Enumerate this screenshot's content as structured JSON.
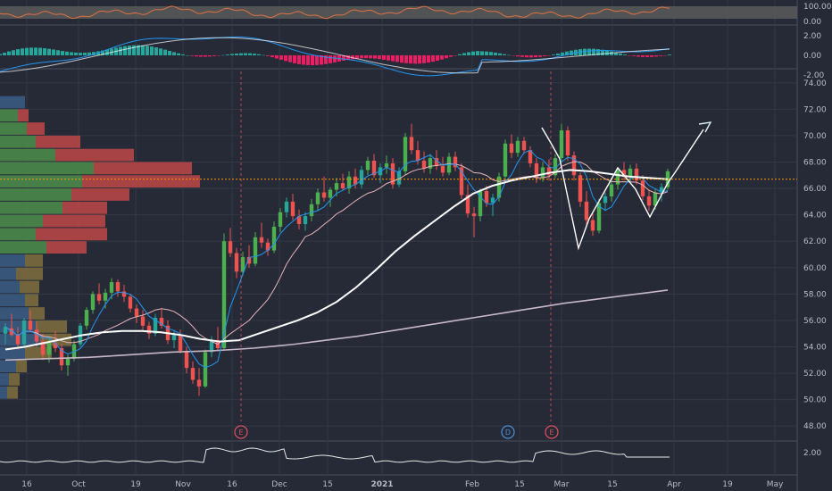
{
  "chart_data": {
    "type": "candlestick",
    "colors": {
      "background": "#262a36",
      "grid": "#333846",
      "up": "#26a69a",
      "up_alt": "#4caf50",
      "down": "#ef5350",
      "ma_white": "#ffffff",
      "ma_pink": "#e8b4b8",
      "ma_blue": "#2196f3",
      "ma_200": "#c7b8c8",
      "current_line": "#ff9800",
      "earnings": "#e05060",
      "dividend": "#4a90d9",
      "vp_up": "#4a8a4a",
      "vp_down": "#c04848",
      "vp_up_old": "#3a5a80",
      "vp_down_old": "#807040",
      "rsi_bg": "#5a5a5a",
      "rsi_line": "#e07040"
    },
    "price_axis": {
      "ticks": [
        "74.00",
        "72.00",
        "70.00",
        "68.00",
        "66.00",
        "64.00",
        "62.00",
        "60.00",
        "58.00",
        "56.00",
        "54.00",
        "52.00",
        "50.00",
        "48.00"
      ],
      "ylim": [
        47,
        75
      ]
    },
    "rsi_axis": {
      "ticks": [
        "100.00",
        "0.00"
      ]
    },
    "macd_axis": {
      "ticks": [
        "2.00",
        "0.00",
        "-2.00"
      ]
    },
    "lower_axis": {
      "ticks": [
        "2.00"
      ]
    },
    "x_axis": {
      "labels": [
        "16",
        "Oct",
        "19",
        "Nov",
        "16",
        "Dec",
        "15",
        "2021",
        "Feb",
        "15",
        "Mar",
        "15",
        "Apr",
        "19",
        "May"
      ]
    },
    "markers": [
      {
        "label": "E",
        "kind": "earnings"
      },
      {
        "label": "D",
        "kind": "dividend"
      },
      {
        "label": "E",
        "kind": "earnings"
      }
    ],
    "current_price": 66.7,
    "candles": [
      [
        55.0,
        55.8,
        54.2,
        55.5
      ],
      [
        55.4,
        56.5,
        54.8,
        54.9
      ],
      [
        54.9,
        55.5,
        53.8,
        54.2
      ],
      [
        54.2,
        56.2,
        53.9,
        56.0
      ],
      [
        56.0,
        56.8,
        55.1,
        55.3
      ],
      [
        55.3,
        55.9,
        54.0,
        54.4
      ],
      [
        54.4,
        55.0,
        53.0,
        53.4
      ],
      [
        53.4,
        54.6,
        52.8,
        54.3
      ],
      [
        54.3,
        55.2,
        53.6,
        53.9
      ],
      [
        53.9,
        54.2,
        52.2,
        52.6
      ],
      [
        52.6,
        53.4,
        51.8,
        53.1
      ],
      [
        53.1,
        54.5,
        52.9,
        54.2
      ],
      [
        54.2,
        55.8,
        54.0,
        55.6
      ],
      [
        55.6,
        57.0,
        55.3,
        56.8
      ],
      [
        56.8,
        58.2,
        56.5,
        58.0
      ],
      [
        58.0,
        58.8,
        57.2,
        57.5
      ],
      [
        57.5,
        58.4,
        56.9,
        58.1
      ],
      [
        58.1,
        59.2,
        57.6,
        58.9
      ],
      [
        58.9,
        59.1,
        57.8,
        58.2
      ],
      [
        58.2,
        58.7,
        57.4,
        57.8
      ],
      [
        57.8,
        58.0,
        56.6,
        56.9
      ],
      [
        56.9,
        57.2,
        55.8,
        56.3
      ],
      [
        56.3,
        56.8,
        55.2,
        55.6
      ],
      [
        55.6,
        55.9,
        54.6,
        55.0
      ],
      [
        55.0,
        56.5,
        54.8,
        56.2
      ],
      [
        56.2,
        56.9,
        55.4,
        55.6
      ],
      [
        55.6,
        56.0,
        54.2,
        54.5
      ],
      [
        54.5,
        55.2,
        53.9,
        54.9
      ],
      [
        54.9,
        55.3,
        53.5,
        53.7
      ],
      [
        53.7,
        54.0,
        52.0,
        52.4
      ],
      [
        52.4,
        52.9,
        51.2,
        51.5
      ],
      [
        51.5,
        52.4,
        50.3,
        51.0
      ],
      [
        51.0,
        53.8,
        50.9,
        53.6
      ],
      [
        53.6,
        54.8,
        53.2,
        54.5
      ],
      [
        54.5,
        55.5,
        53.7,
        53.9
      ],
      [
        53.9,
        62.6,
        53.8,
        62.0
      ],
      [
        62.0,
        63.0,
        60.8,
        61.1
      ],
      [
        61.1,
        61.5,
        59.2,
        59.7
      ],
      [
        59.7,
        61.2,
        59.4,
        60.8
      ],
      [
        60.8,
        61.7,
        60.0,
        60.3
      ],
      [
        60.3,
        62.7,
        60.1,
        62.3
      ],
      [
        62.3,
        63.4,
        61.5,
        61.9
      ],
      [
        61.9,
        62.2,
        60.9,
        61.3
      ],
      [
        61.3,
        63.5,
        61.1,
        63.1
      ],
      [
        63.1,
        64.5,
        62.7,
        64.2
      ],
      [
        64.2,
        65.3,
        63.8,
        65.0
      ],
      [
        65.0,
        65.6,
        63.6,
        63.9
      ],
      [
        63.9,
        64.4,
        62.9,
        63.3
      ],
      [
        63.3,
        64.2,
        62.8,
        63.9
      ],
      [
        63.9,
        65.2,
        63.5,
        64.8
      ],
      [
        64.8,
        66.0,
        64.3,
        65.7
      ],
      [
        65.7,
        66.9,
        65.0,
        65.3
      ],
      [
        65.3,
        66.1,
        64.6,
        65.9
      ],
      [
        65.9,
        66.8,
        65.4,
        66.4
      ],
      [
        66.4,
        67.1,
        65.9,
        66.0
      ],
      [
        66.0,
        67.3,
        65.6,
        66.9
      ],
      [
        66.9,
        67.5,
        66.0,
        66.3
      ],
      [
        66.3,
        67.7,
        66.0,
        67.4
      ],
      [
        67.4,
        68.4,
        67.0,
        68.1
      ],
      [
        68.1,
        68.6,
        66.8,
        67.0
      ],
      [
        67.0,
        67.9,
        66.4,
        67.6
      ],
      [
        67.6,
        68.5,
        67.1,
        67.9
      ],
      [
        67.9,
        68.3,
        66.0,
        66.3
      ],
      [
        66.3,
        67.6,
        66.1,
        67.3
      ],
      [
        67.3,
        70.2,
        67.0,
        69.9
      ],
      [
        69.9,
        70.9,
        68.6,
        68.9
      ],
      [
        68.9,
        69.6,
        67.8,
        68.1
      ],
      [
        68.1,
        68.8,
        67.2,
        67.5
      ],
      [
        67.5,
        68.6,
        67.1,
        68.3
      ],
      [
        68.3,
        68.9,
        67.4,
        67.7
      ],
      [
        67.7,
        68.4,
        66.9,
        67.2
      ],
      [
        67.2,
        68.7,
        67.0,
        68.4
      ],
      [
        68.4,
        68.8,
        67.3,
        67.6
      ],
      [
        67.6,
        67.9,
        65.2,
        65.5
      ],
      [
        65.5,
        66.3,
        63.8,
        64.1
      ],
      [
        64.1,
        64.6,
        62.3,
        63.9
      ],
      [
        63.9,
        66.0,
        63.5,
        65.8
      ],
      [
        65.8,
        66.2,
        64.6,
        64.9
      ],
      [
        64.9,
        65.6,
        63.9,
        65.3
      ],
      [
        65.3,
        67.2,
        65.0,
        66.9
      ],
      [
        66.9,
        69.7,
        66.6,
        69.4
      ],
      [
        69.4,
        70.1,
        68.3,
        68.7
      ],
      [
        68.7,
        69.9,
        68.4,
        69.6
      ],
      [
        69.6,
        69.9,
        68.6,
        68.9
      ],
      [
        68.9,
        69.2,
        67.6,
        67.9
      ],
      [
        67.9,
        68.3,
        66.4,
        66.8
      ],
      [
        66.8,
        68.0,
        66.5,
        67.6
      ],
      [
        67.6,
        68.2,
        66.6,
        67.0
      ],
      [
        67.0,
        68.6,
        66.8,
        68.3
      ],
      [
        68.3,
        70.9,
        68.0,
        70.4
      ],
      [
        70.4,
        70.7,
        68.1,
        68.5
      ],
      [
        68.5,
        68.8,
        66.6,
        67.0
      ],
      [
        67.0,
        67.2,
        64.6,
        65.0
      ],
      [
        65.0,
        65.8,
        63.2,
        63.6
      ],
      [
        63.6,
        64.2,
        62.4,
        62.8
      ],
      [
        62.8,
        65.2,
        62.6,
        64.9
      ],
      [
        64.9,
        65.7,
        64.3,
        65.4
      ],
      [
        65.4,
        66.6,
        65.0,
        66.3
      ],
      [
        66.3,
        67.6,
        65.9,
        67.4
      ],
      [
        67.4,
        68.0,
        66.6,
        66.9
      ],
      [
        66.9,
        67.8,
        66.5,
        67.5
      ],
      [
        67.5,
        67.9,
        66.3,
        66.6
      ],
      [
        66.6,
        67.0,
        65.1,
        65.4
      ],
      [
        65.4,
        65.9,
        64.3,
        64.7
      ],
      [
        64.7,
        66.0,
        64.4,
        65.7
      ],
      [
        65.7,
        66.4,
        65.0,
        66.1
      ],
      [
        66.1,
        67.5,
        65.9,
        67.3
      ]
    ],
    "ma200": [
      53.0,
      53.05,
      53.1,
      53.15,
      53.2,
      53.3,
      53.4,
      53.5,
      53.6,
      53.65,
      53.7,
      53.8,
      53.9,
      54.05,
      54.2,
      54.4,
      54.6,
      54.8,
      55.05,
      55.3,
      55.55,
      55.8,
      56.05,
      56.3,
      56.55,
      56.8,
      57.05,
      57.3,
      57.5,
      57.7,
      57.9,
      58.1,
      58.3
    ],
    "ma50": [
      53.8,
      54.0,
      54.3,
      54.6,
      54.9,
      55.1,
      55.2,
      55.2,
      55.1,
      54.9,
      54.6,
      54.4,
      54.5,
      55.0,
      55.5,
      56.0,
      56.6,
      57.4,
      58.5,
      59.8,
      61.2,
      62.4,
      63.5,
      64.6,
      65.6,
      66.2,
      66.6,
      66.9,
      67.2,
      67.4,
      67.3,
      67.1,
      66.9,
      66.8,
      66.7
    ]
  }
}
